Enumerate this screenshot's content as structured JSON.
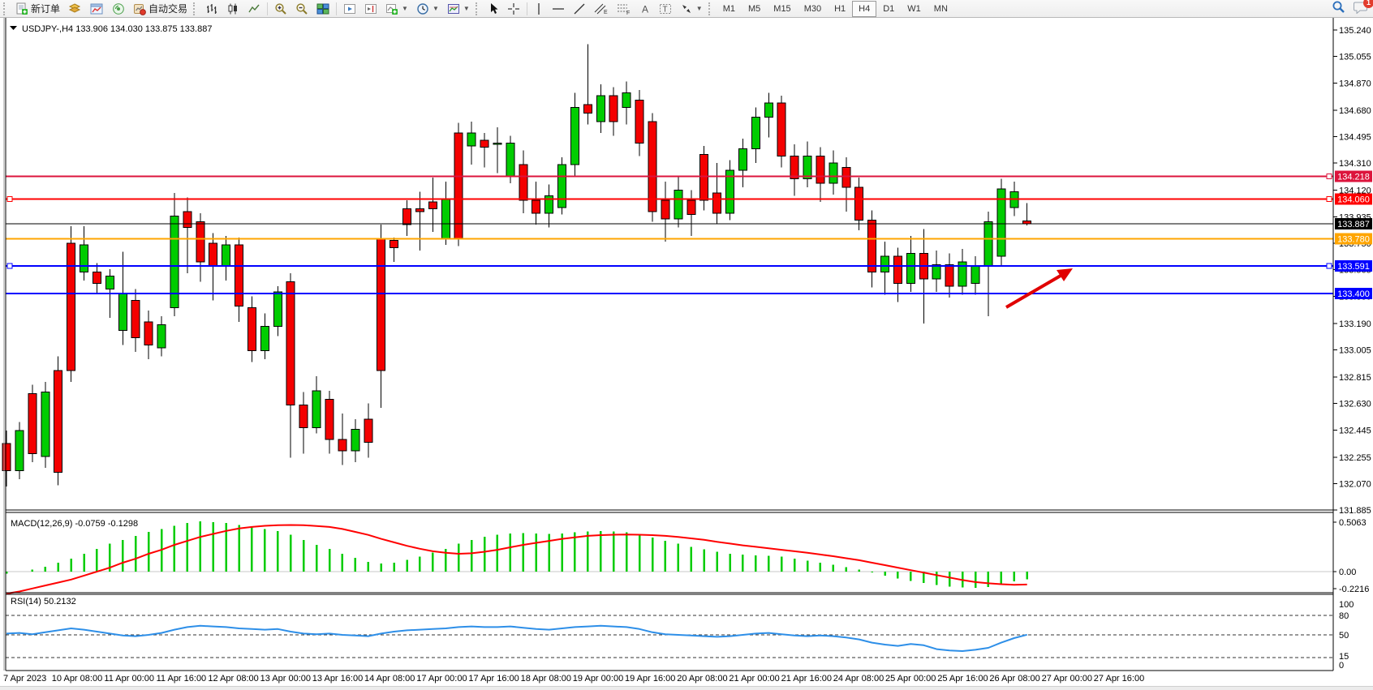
{
  "toolbar": {
    "new_order_label": "新订单",
    "auto_trading_label": "自动交易",
    "timeframes": [
      "M1",
      "M5",
      "M15",
      "M30",
      "H1",
      "H4",
      "D1",
      "W1",
      "MN"
    ],
    "active_timeframe": "H4",
    "notification_count": "1",
    "icon_names": [
      "new-order-icon",
      "charts-stack-icon",
      "chart-window-icon",
      "signals-icon",
      "auto-trading-icon",
      "bar-chart-icon",
      "candlestick-chart-icon",
      "line-chart-icon",
      "zoom-in-icon",
      "zoom-out-icon",
      "tile-windows-icon",
      "auto-scroll-icon",
      "chart-shift-icon",
      "add-indicator-icon",
      "periods-icon",
      "templates-icon",
      "cursor-icon",
      "crosshair-icon",
      "vertical-line-icon",
      "horizontal-line-icon",
      "trendline-icon",
      "equidistant-channel-icon",
      "fibonacci-icon",
      "text-icon",
      "text-label-icon",
      "arrow-shapes-icon",
      "search-icon",
      "chat-icon"
    ]
  },
  "chart": {
    "title": "USDJPY-,H4",
    "ohlc_text": "133.906 134.030 133.875 133.887",
    "price_axis_labels": [
      "135.240",
      "135.055",
      "134.870",
      "134.680",
      "134.495",
      "134.310",
      "134.120",
      "133.935",
      "133.750",
      "133.565",
      "133.380",
      "133.190",
      "133.005",
      "132.815",
      "132.630",
      "132.445",
      "132.255",
      "132.070",
      "131.885"
    ],
    "hlines": [
      {
        "label": "134.218",
        "price": 134.218,
        "color": "#DC143C",
        "width": 2,
        "handles": [
          "right"
        ]
      },
      {
        "label": "134.060",
        "price": 134.06,
        "color": "#FF0000",
        "width": 2,
        "handles": [
          "left",
          "right"
        ]
      },
      {
        "label": "133.780",
        "price": 133.78,
        "color": "#FFA500",
        "width": 2,
        "handles": []
      },
      {
        "label": "133.591",
        "price": 133.591,
        "color": "#0000FF",
        "width": 2,
        "handles": [
          "left",
          "right"
        ]
      },
      {
        "label": "133.400",
        "price": 133.4,
        "color": "#0000FF",
        "width": 2,
        "handles": []
      }
    ],
    "current_price": {
      "label": "133.887",
      "price": 133.887,
      "line_color": "#000000",
      "box_color": "#000000"
    },
    "date_labels": [
      "7 Apr 2023",
      "10 Apr 08:00",
      "11 Apr 00:00",
      "11 Apr 16:00",
      "12 Apr 08:00",
      "13 Apr 00:00",
      "13 Apr 16:00",
      "14 Apr 08:00",
      "17 Apr 00:00",
      "17 Apr 16:00",
      "18 Apr 08:00",
      "19 Apr 00:00",
      "19 Apr 16:00",
      "20 Apr 08:00",
      "21 Apr 00:00",
      "21 Apr 16:00",
      "24 Apr 08:00",
      "25 Apr 00:00",
      "25 Apr 16:00",
      "26 Apr 08:00",
      "27 Apr 00:00",
      "27 Apr 16:00"
    ],
    "arrow_color": "#E00000",
    "bull_color": "#00CC00",
    "bear_color": "#F40000"
  },
  "chart_data": {
    "type": "candlestick",
    "symbol": "USDJPY-",
    "timeframe": "H4",
    "current_ohlc": {
      "open": 133.906,
      "high": 134.03,
      "low": 133.875,
      "close": 133.887
    },
    "price_range": [
      131.885,
      135.24
    ],
    "candles": [
      [
        132.35,
        132.44,
        132.05,
        132.16
      ],
      [
        132.16,
        132.5,
        132.1,
        132.44
      ],
      [
        132.7,
        132.76,
        132.22,
        132.28
      ],
      [
        132.26,
        132.78,
        132.18,
        132.71
      ],
      [
        132.86,
        132.96,
        132.06,
        132.15
      ],
      [
        133.75,
        133.87,
        132.78,
        132.86
      ],
      [
        133.55,
        133.87,
        133.49,
        133.74
      ],
      [
        133.55,
        133.61,
        133.4,
        133.47
      ],
      [
        133.43,
        133.57,
        133.23,
        133.52
      ],
      [
        133.14,
        133.69,
        133.04,
        133.4
      ],
      [
        133.35,
        133.43,
        132.99,
        133.09
      ],
      [
        133.2,
        133.28,
        132.94,
        133.04
      ],
      [
        133.02,
        133.24,
        132.96,
        133.18
      ],
      [
        133.3,
        134.1,
        133.24,
        133.94
      ],
      [
        133.97,
        134.07,
        133.54,
        133.86
      ],
      [
        133.9,
        133.96,
        133.48,
        133.62
      ],
      [
        133.75,
        133.82,
        133.35,
        133.59
      ],
      [
        133.59,
        133.8,
        133.49,
        133.74
      ],
      [
        133.74,
        133.79,
        133.2,
        133.31
      ],
      [
        133.3,
        133.38,
        132.92,
        133.0
      ],
      [
        133.0,
        133.26,
        132.94,
        133.17
      ],
      [
        133.17,
        133.45,
        133.1,
        133.41
      ],
      [
        133.48,
        133.54,
        132.25,
        132.62
      ],
      [
        132.62,
        132.71,
        132.28,
        132.46
      ],
      [
        132.46,
        132.82,
        132.42,
        132.72
      ],
      [
        132.66,
        132.72,
        132.28,
        132.38
      ],
      [
        132.38,
        132.56,
        132.2,
        132.3
      ],
      [
        132.3,
        132.52,
        132.22,
        132.45
      ],
      [
        132.52,
        132.63,
        132.25,
        132.36
      ],
      [
        133.78,
        133.88,
        132.6,
        132.86
      ],
      [
        133.77,
        133.79,
        133.62,
        133.72
      ],
      [
        133.99,
        134.05,
        133.8,
        133.88
      ],
      [
        133.99,
        134.11,
        133.7,
        133.97
      ],
      [
        134.04,
        134.21,
        133.83,
        133.99
      ],
      [
        133.78,
        134.18,
        133.74,
        134.06
      ],
      [
        134.52,
        134.59,
        133.73,
        133.78
      ],
      [
        134.43,
        134.6,
        134.3,
        134.52
      ],
      [
        134.47,
        134.52,
        134.28,
        134.42
      ],
      [
        134.44,
        134.56,
        134.24,
        134.45
      ],
      [
        134.22,
        134.5,
        134.17,
        134.45
      ],
      [
        134.3,
        134.4,
        133.96,
        134.05
      ],
      [
        134.05,
        134.18,
        133.88,
        133.96
      ],
      [
        133.96,
        134.16,
        133.86,
        134.08
      ],
      [
        134.0,
        134.35,
        133.95,
        134.3
      ],
      [
        134.3,
        134.8,
        134.22,
        134.7
      ],
      [
        134.72,
        135.14,
        134.58,
        134.66
      ],
      [
        134.6,
        134.86,
        134.52,
        134.78
      ],
      [
        134.78,
        134.84,
        134.5,
        134.6
      ],
      [
        134.7,
        134.88,
        134.58,
        134.8
      ],
      [
        134.75,
        134.82,
        134.36,
        134.45
      ],
      [
        134.6,
        134.66,
        133.9,
        133.97
      ],
      [
        134.05,
        134.18,
        133.76,
        133.92
      ],
      [
        133.92,
        134.22,
        133.86,
        134.12
      ],
      [
        134.05,
        134.12,
        133.8,
        133.95
      ],
      [
        134.37,
        134.43,
        133.98,
        134.05
      ],
      [
        134.1,
        134.31,
        133.89,
        133.96
      ],
      [
        133.96,
        134.33,
        133.91,
        134.26
      ],
      [
        134.26,
        134.48,
        134.14,
        134.41
      ],
      [
        134.41,
        134.7,
        134.31,
        134.63
      ],
      [
        134.63,
        134.8,
        134.49,
        134.73
      ],
      [
        134.73,
        134.78,
        134.28,
        134.36
      ],
      [
        134.36,
        134.44,
        134.08,
        134.2
      ],
      [
        134.2,
        134.46,
        134.14,
        134.36
      ],
      [
        134.36,
        134.42,
        134.04,
        134.17
      ],
      [
        134.17,
        134.4,
        134.09,
        134.31
      ],
      [
        134.28,
        134.35,
        133.97,
        134.14
      ],
      [
        134.14,
        134.21,
        133.84,
        133.91
      ],
      [
        133.91,
        133.98,
        133.44,
        133.55
      ],
      [
        133.55,
        133.76,
        133.39,
        133.66
      ],
      [
        133.66,
        133.72,
        133.34,
        133.47
      ],
      [
        133.47,
        133.8,
        133.41,
        133.68
      ],
      [
        133.68,
        133.85,
        133.19,
        133.5
      ],
      [
        133.5,
        133.7,
        133.41,
        133.6
      ],
      [
        133.6,
        133.68,
        133.37,
        133.45
      ],
      [
        133.45,
        133.71,
        133.39,
        133.62
      ],
      [
        133.47,
        133.66,
        133.39,
        133.59
      ],
      [
        133.59,
        133.97,
        133.24,
        133.9
      ],
      [
        133.66,
        134.2,
        133.59,
        134.13
      ],
      [
        134.0,
        134.18,
        133.94,
        134.11
      ],
      [
        133.906,
        134.03,
        133.875,
        133.887
      ]
    ],
    "macd": {
      "label": "MACD(12,26,9) -0.0759 -0.1298",
      "axis_labels": [
        "0.5063",
        "0.00",
        "-0.2216"
      ],
      "range": [
        -0.2216,
        0.5063
      ],
      "histogram": [
        -0.02,
        0.0,
        0.02,
        0.05,
        0.09,
        0.13,
        0.18,
        0.23,
        0.28,
        0.32,
        0.36,
        0.4,
        0.43,
        0.46,
        0.49,
        0.5063,
        0.5,
        0.49,
        0.47,
        0.45,
        0.43,
        0.41,
        0.37,
        0.32,
        0.27,
        0.23,
        0.18,
        0.14,
        0.1,
        0.08,
        0.09,
        0.12,
        0.15,
        0.19,
        0.23,
        0.28,
        0.32,
        0.35,
        0.37,
        0.385,
        0.39,
        0.385,
        0.38,
        0.385,
        0.395,
        0.405,
        0.41,
        0.405,
        0.395,
        0.375,
        0.345,
        0.31,
        0.28,
        0.25,
        0.225,
        0.2,
        0.18,
        0.17,
        0.165,
        0.16,
        0.15,
        0.13,
        0.11,
        0.09,
        0.07,
        0.045,
        0.02,
        -0.01,
        -0.04,
        -0.07,
        -0.095,
        -0.115,
        -0.135,
        -0.15,
        -0.16,
        -0.165,
        -0.155,
        -0.13,
        -0.1,
        -0.0759
      ],
      "signal": [
        -0.2216,
        -0.2,
        -0.17,
        -0.14,
        -0.11,
        -0.08,
        -0.04,
        0.0,
        0.04,
        0.09,
        0.13,
        0.18,
        0.22,
        0.27,
        0.31,
        0.35,
        0.38,
        0.41,
        0.435,
        0.45,
        0.462,
        0.468,
        0.47,
        0.468,
        0.46,
        0.45,
        0.43,
        0.4,
        0.37,
        0.33,
        0.295,
        0.26,
        0.23,
        0.205,
        0.19,
        0.18,
        0.185,
        0.2,
        0.22,
        0.245,
        0.27,
        0.29,
        0.31,
        0.33,
        0.345,
        0.36,
        0.368,
        0.372,
        0.373,
        0.372,
        0.368,
        0.36,
        0.35,
        0.335,
        0.32,
        0.3,
        0.283,
        0.265,
        0.25,
        0.235,
        0.22,
        0.205,
        0.19,
        0.172,
        0.155,
        0.135,
        0.115,
        0.09,
        0.065,
        0.04,
        0.015,
        -0.01,
        -0.035,
        -0.06,
        -0.085,
        -0.105,
        -0.118,
        -0.127,
        -0.132,
        -0.1298
      ]
    },
    "rsi": {
      "label": "RSI(14) 50.2132",
      "axis_labels": [
        "100",
        "80",
        "50",
        "15",
        "0"
      ],
      "levels": [
        80,
        50,
        15
      ],
      "range": [
        0,
        100
      ],
      "values": [
        52,
        53,
        51,
        54,
        57,
        60,
        58,
        55,
        52,
        49,
        48,
        50,
        53,
        58,
        62,
        64,
        63,
        62,
        60,
        59,
        58,
        59,
        55,
        52,
        51,
        52,
        50,
        49,
        48,
        52,
        55,
        57,
        58,
        59,
        60,
        62,
        63,
        62,
        62,
        63,
        61,
        59,
        58,
        60,
        62,
        63,
        64,
        63,
        62,
        59,
        54,
        51,
        50,
        49,
        48,
        47,
        48,
        50,
        52,
        53,
        51,
        49,
        48,
        49,
        48,
        46,
        43,
        38,
        35,
        33,
        36,
        34,
        28,
        26,
        25,
        27,
        30,
        38,
        45,
        50.2
      ]
    }
  }
}
